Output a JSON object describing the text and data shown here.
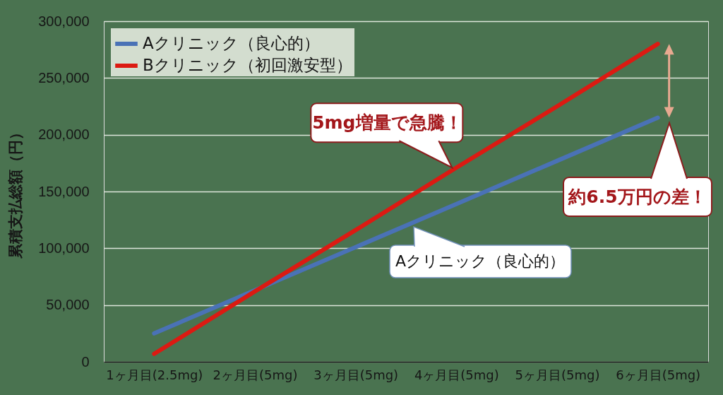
{
  "chart_data": {
    "type": "line",
    "ylabel": "累積支払総額（円）",
    "categories": [
      "1ヶ月目(2.5mg)",
      "2ヶ月目(5mg)",
      "3ヶ月目(5mg)",
      "4ヶ月目(5mg)",
      "5ヶ月目(5mg)",
      "6ヶ月目(5mg)"
    ],
    "series": [
      {
        "name": "Aクリニック（良心的）",
        "color": "#4a72b6",
        "values": [
          25000,
          63000,
          101000,
          139000,
          177000,
          215000
        ]
      },
      {
        "name": "Bクリニック（初回激安型）",
        "color": "#dc1a12",
        "values": [
          7000,
          62000,
          116000,
          171000,
          225000,
          280000
        ]
      }
    ],
    "ylim": [
      0,
      300000
    ],
    "yticks": [
      0,
      {
        "value": 50000,
        "label": "50,000"
      },
      {
        "value": 100000,
        "label": "100,000"
      },
      {
        "value": 150000,
        "label": "150,000"
      },
      {
        "value": 200000,
        "label": "200,000"
      },
      {
        "value": 250000,
        "label": "250,000"
      },
      {
        "value": 300000,
        "label": "300,000"
      }
    ],
    "grid": "y",
    "legend": "top left",
    "annotations": [
      {
        "text": "5mg増量で急騰！",
        "x": "4ヶ月目(5mg)",
        "y": 171000
      },
      "Aクリニック（良心的）",
      "約6.5万円の差！"
    ]
  }
}
